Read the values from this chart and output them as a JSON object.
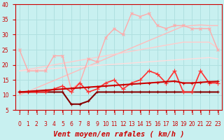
{
  "title": "",
  "xlabel": "Vent moyen/en rafales ( km/h )",
  "ylabel": "",
  "bg_color": "#c8f0f0",
  "grid_color": "#b0e0e0",
  "xlim": [
    -0.5,
    23.5
  ],
  "ylim": [
    5,
    40
  ],
  "yticks": [
    5,
    10,
    15,
    20,
    25,
    30,
    35,
    40
  ],
  "xticks": [
    0,
    1,
    2,
    3,
    4,
    5,
    6,
    7,
    8,
    9,
    10,
    11,
    12,
    13,
    14,
    15,
    16,
    17,
    18,
    19,
    20,
    21,
    22,
    23
  ],
  "x": [
    0,
    1,
    2,
    3,
    4,
    5,
    6,
    7,
    8,
    9,
    10,
    11,
    12,
    13,
    14,
    15,
    16,
    17,
    18,
    19,
    20,
    21,
    22,
    23
  ],
  "series": [
    {
      "y": [
        25,
        18,
        18,
        18,
        23,
        23,
        12,
        14,
        22,
        21,
        29,
        32,
        30,
        37,
        36,
        37,
        33,
        32,
        33,
        33,
        32,
        32,
        32,
        25
      ],
      "color": "#ffaaaa",
      "lw": 1.0,
      "marker": "x",
      "ms": 3.5,
      "zorder": 3
    },
    {
      "y": [
        10.0,
        11.2,
        12.4,
        13.6,
        14.8,
        16.0,
        17.2,
        18.4,
        19.6,
        20.8,
        22.0,
        23.2,
        24.4,
        25.6,
        26.8,
        28.0,
        29.2,
        30.4,
        31.6,
        32.8,
        33.0,
        33.2,
        33.0,
        33.0
      ],
      "color": "#ffbbbb",
      "lw": 1.0,
      "marker": null,
      "ms": 0,
      "zorder": 2
    },
    {
      "y": [
        18.0,
        18.5,
        19.0,
        19.5,
        20.0,
        20.5,
        21.0,
        21.5,
        22.0,
        22.5,
        23.0,
        23.5,
        24.0,
        24.5,
        25.0,
        25.5,
        26.0,
        26.5,
        27.0,
        27.5,
        27.5,
        27.5,
        27.5,
        25.5
      ],
      "color": "#ffcccc",
      "lw": 1.0,
      "marker": null,
      "ms": 0,
      "zorder": 2
    },
    {
      "y": [
        18.0,
        18.2,
        18.4,
        18.6,
        18.8,
        19.0,
        19.2,
        19.4,
        19.6,
        19.8,
        20.0,
        20.2,
        20.4,
        20.6,
        20.8,
        21.0,
        21.2,
        21.4,
        21.6,
        21.8,
        22.0,
        22.2,
        22.4,
        22.0
      ],
      "color": "#ffdddd",
      "lw": 1.0,
      "marker": null,
      "ms": 0,
      "zorder": 2
    },
    {
      "y": [
        11,
        11,
        11,
        11,
        12,
        13,
        11,
        14,
        11,
        12,
        14,
        15,
        12,
        14,
        15,
        18,
        17,
        14,
        18,
        11,
        11,
        18,
        14,
        14
      ],
      "color": "#ff3333",
      "lw": 1.2,
      "marker": "+",
      "ms": 4,
      "zorder": 4
    },
    {
      "y": [
        11.0,
        11.2,
        11.4,
        11.6,
        11.8,
        12.0,
        12.2,
        12.4,
        12.6,
        12.8,
        13.0,
        13.2,
        13.4,
        13.6,
        13.8,
        14.0,
        14.2,
        14.4,
        14.6,
        14.0,
        14.0,
        14.2,
        14.4,
        14.5
      ],
      "color": "#cc0000",
      "lw": 1.5,
      "marker": "+",
      "ms": 3,
      "zorder": 5
    },
    {
      "y": [
        11,
        11,
        11,
        11,
        11,
        11,
        7,
        7,
        8,
        11,
        11,
        11,
        11,
        11,
        11,
        11,
        11,
        11,
        11,
        11,
        11,
        11,
        11,
        11
      ],
      "color": "#880000",
      "lw": 1.5,
      "marker": "+",
      "ms": 3,
      "zorder": 3
    }
  ],
  "tick_color": "#cc0000",
  "label_color": "#cc0000",
  "axis_color": "#cc0000",
  "tick_fontsize": 5.5,
  "label_fontsize": 7.5
}
